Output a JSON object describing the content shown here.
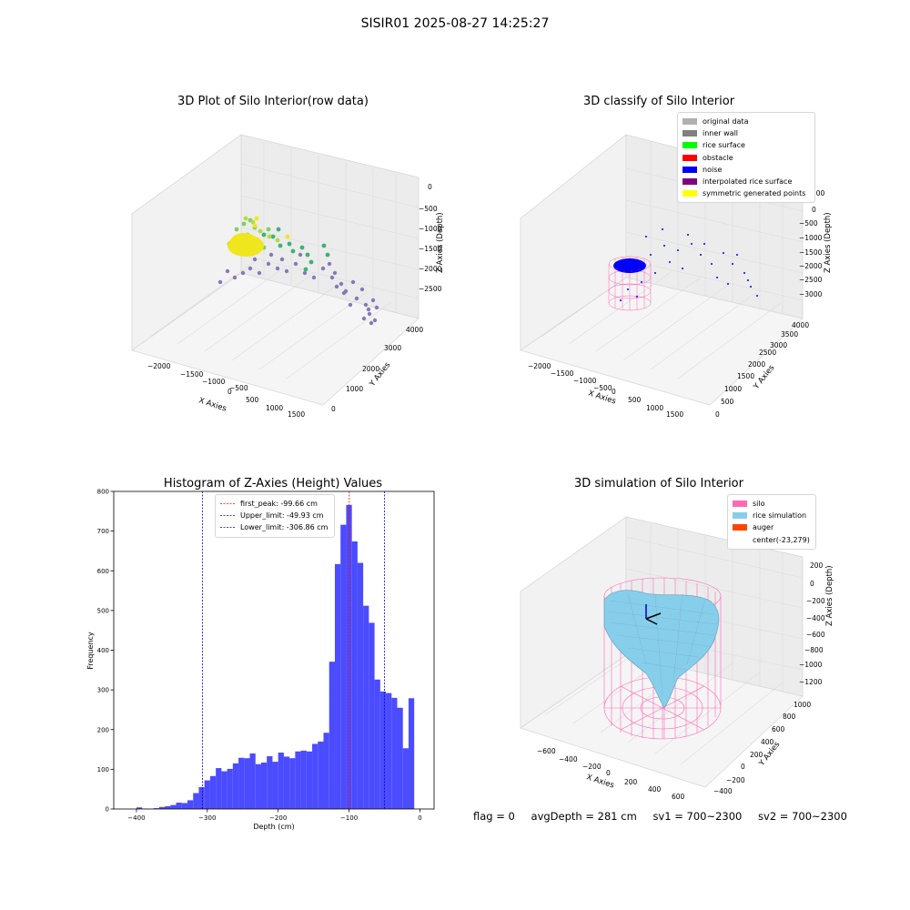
{
  "suptitle": "SISIR01 2025-08-27 14:25:27",
  "footer": {
    "flag": "flag = 0",
    "avg_depth": "avgDepth = 281 cm",
    "sv1": "sv1 = 700~2300",
    "sv2": "sv2 = 700~2300"
  },
  "panels": {
    "raw": {
      "title": "3D Plot of Silo Interior(row data)",
      "xlabel": "X Axies",
      "ylabel": "Y Axies",
      "zlabel": "Z Axies (Depth)",
      "xticks": [
        "−2000",
        "−1500",
        "−1000",
        "−500",
        "0",
        "500",
        "1000",
        "1500"
      ],
      "yticks": [
        "0",
        "1000",
        "2000",
        "3000",
        "4000"
      ],
      "zticks": [
        "0",
        "−500",
        "−1000",
        "−1500",
        "−2000",
        "−2500"
      ]
    },
    "classify": {
      "title": "3D classify of Silo Interior",
      "xlabel": "X Axies",
      "ylabel": "Y Axies",
      "zlabel": "Z Axies (Depth)",
      "xticks": [
        "−2000",
        "−1500",
        "−1000",
        "−500",
        "0",
        "500",
        "1000",
        "1500"
      ],
      "yticks": [
        "0",
        "500",
        "1000",
        "1500",
        "2000",
        "2500",
        "3000",
        "3500",
        "4000"
      ],
      "zticks": [
        "500",
        "0",
        "−500",
        "−1000",
        "−1500",
        "−2000",
        "−2500",
        "−3000"
      ],
      "legend": [
        {
          "label": "original data",
          "color": "#b0b0b0"
        },
        {
          "label": "inner wall",
          "color": "#808080"
        },
        {
          "label": "rice surface",
          "color": "#00ff00"
        },
        {
          "label": "obstacle",
          "color": "#ff0000"
        },
        {
          "label": "noise",
          "color": "#0000ff"
        },
        {
          "label": "interpolated rice surface",
          "color": "#800080"
        },
        {
          "label": "symmetric generated points",
          "color": "#ffff00"
        }
      ]
    },
    "simulation": {
      "title": "3D simulation of Silo Interior",
      "xlabel": "X Axies",
      "ylabel": "Y Axies",
      "zlabel": "Z Axies (Depth)",
      "xticks": [
        "−600",
        "−400",
        "−200",
        "0",
        "200",
        "400",
        "600"
      ],
      "yticks": [
        "−400",
        "−200",
        "0",
        "200",
        "400",
        "600",
        "800",
        "1000"
      ],
      "zticks": [
        "200",
        "0",
        "−200",
        "−400",
        "−600",
        "−800",
        "−1000",
        "−1200"
      ],
      "legend": [
        {
          "label": "silo",
          "color": "#ff69b4"
        },
        {
          "label": "rice simulation",
          "color": "#87ceeb"
        },
        {
          "label": "auger",
          "color": "#ff4500"
        },
        {
          "label": "center(-23,279)",
          "color": ""
        }
      ]
    }
  },
  "chart_data": [
    {
      "type": "bar",
      "title": "Histogram of Z-Axies (Height) Values",
      "xlabel": "Depth (cm)",
      "ylabel": "Frequency",
      "xlim": [
        -432,
        20
      ],
      "ylim": [
        0,
        800
      ],
      "xticks": [
        -400,
        -300,
        -200,
        -100,
        0
      ],
      "yticks": [
        0,
        100,
        200,
        300,
        400,
        500,
        600,
        700,
        800
      ],
      "bin_width": 8,
      "bin_start": -400,
      "color": "#4b4bff",
      "values": [
        4,
        1,
        0,
        2,
        5,
        7,
        10,
        16,
        15,
        22,
        40,
        55,
        72,
        83,
        103,
        95,
        101,
        115,
        129,
        128,
        140,
        113,
        117,
        133,
        119,
        142,
        132,
        128,
        145,
        147,
        145,
        164,
        170,
        192,
        371,
        617,
        716,
        766,
        674,
        620,
        512,
        469,
        326,
        296,
        292,
        280,
        255,
        153,
        279
      ],
      "vlines": [
        {
          "x": -99.66,
          "color": "#ff0000",
          "label": "first_peak: -99.66 cm"
        },
        {
          "x": -49.93,
          "color": "#0000cc",
          "label": "Upper_limit: -49.93 cm"
        },
        {
          "x": -306.86,
          "color": "#0000cc",
          "label": "Lower_limit: -306.86 cm"
        }
      ],
      "legend_position": "top-center"
    }
  ]
}
